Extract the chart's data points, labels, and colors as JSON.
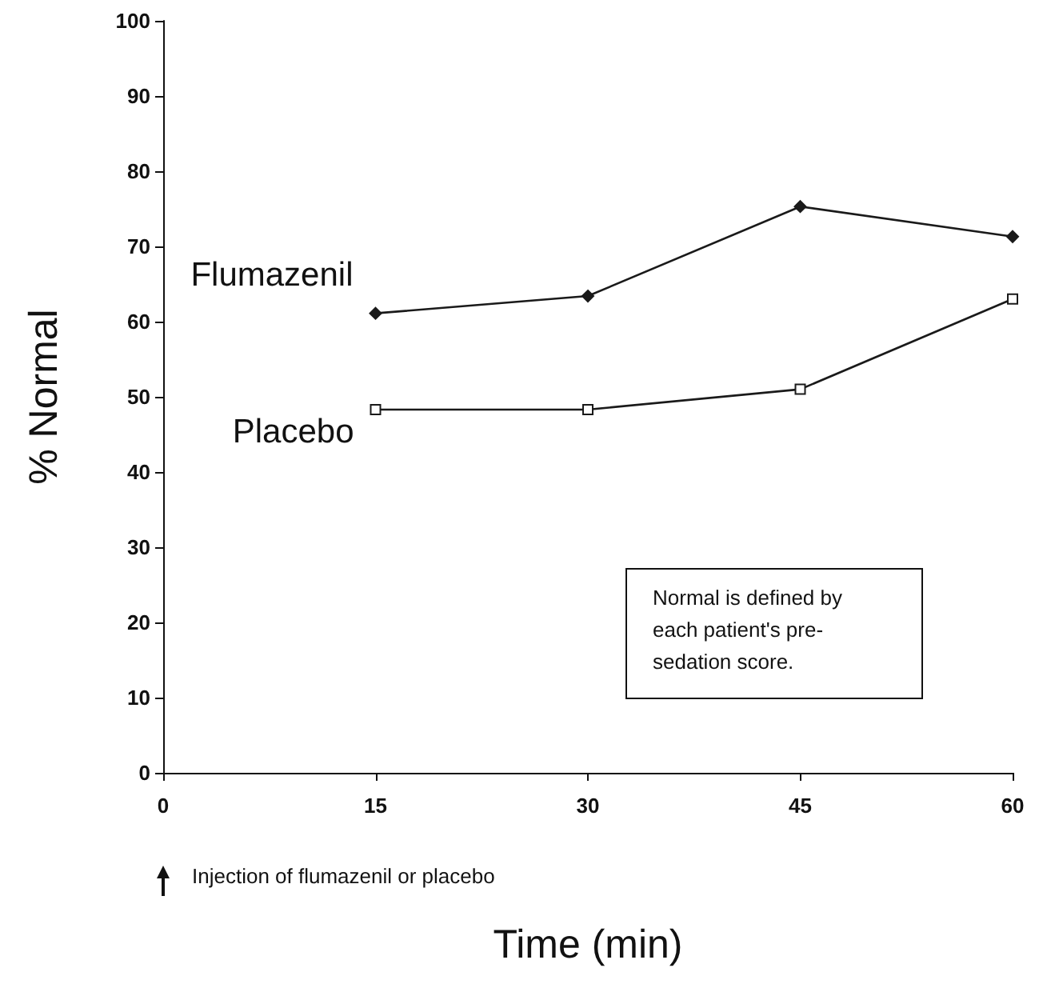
{
  "chart_data": {
    "type": "line",
    "xlabel": "Time (min)",
    "ylabel": "% Normal",
    "x": [
      15,
      30,
      45,
      60
    ],
    "series": [
      {
        "name": "Flumazenil",
        "color": "#1a1a1a",
        "marker": "diamond",
        "values": [
          61.1,
          63.4,
          75.3,
          71.3
        ]
      },
      {
        "name": "Placebo",
        "color": "#1a1a1a",
        "marker": "square",
        "values": [
          48.3,
          48.3,
          51,
          63
        ]
      }
    ],
    "xlim": [
      0,
      60
    ],
    "xticks": [
      0,
      15,
      30,
      45,
      60
    ],
    "ylim": [
      0,
      100
    ],
    "yticks": [
      0,
      10,
      20,
      30,
      40,
      50,
      60,
      70,
      80,
      90,
      100
    ],
    "grid": false,
    "legend": false,
    "annotations": [
      "Normal is defined by each patient's pre-sedation score.",
      "Injection of flumazenil or placebo"
    ]
  }
}
